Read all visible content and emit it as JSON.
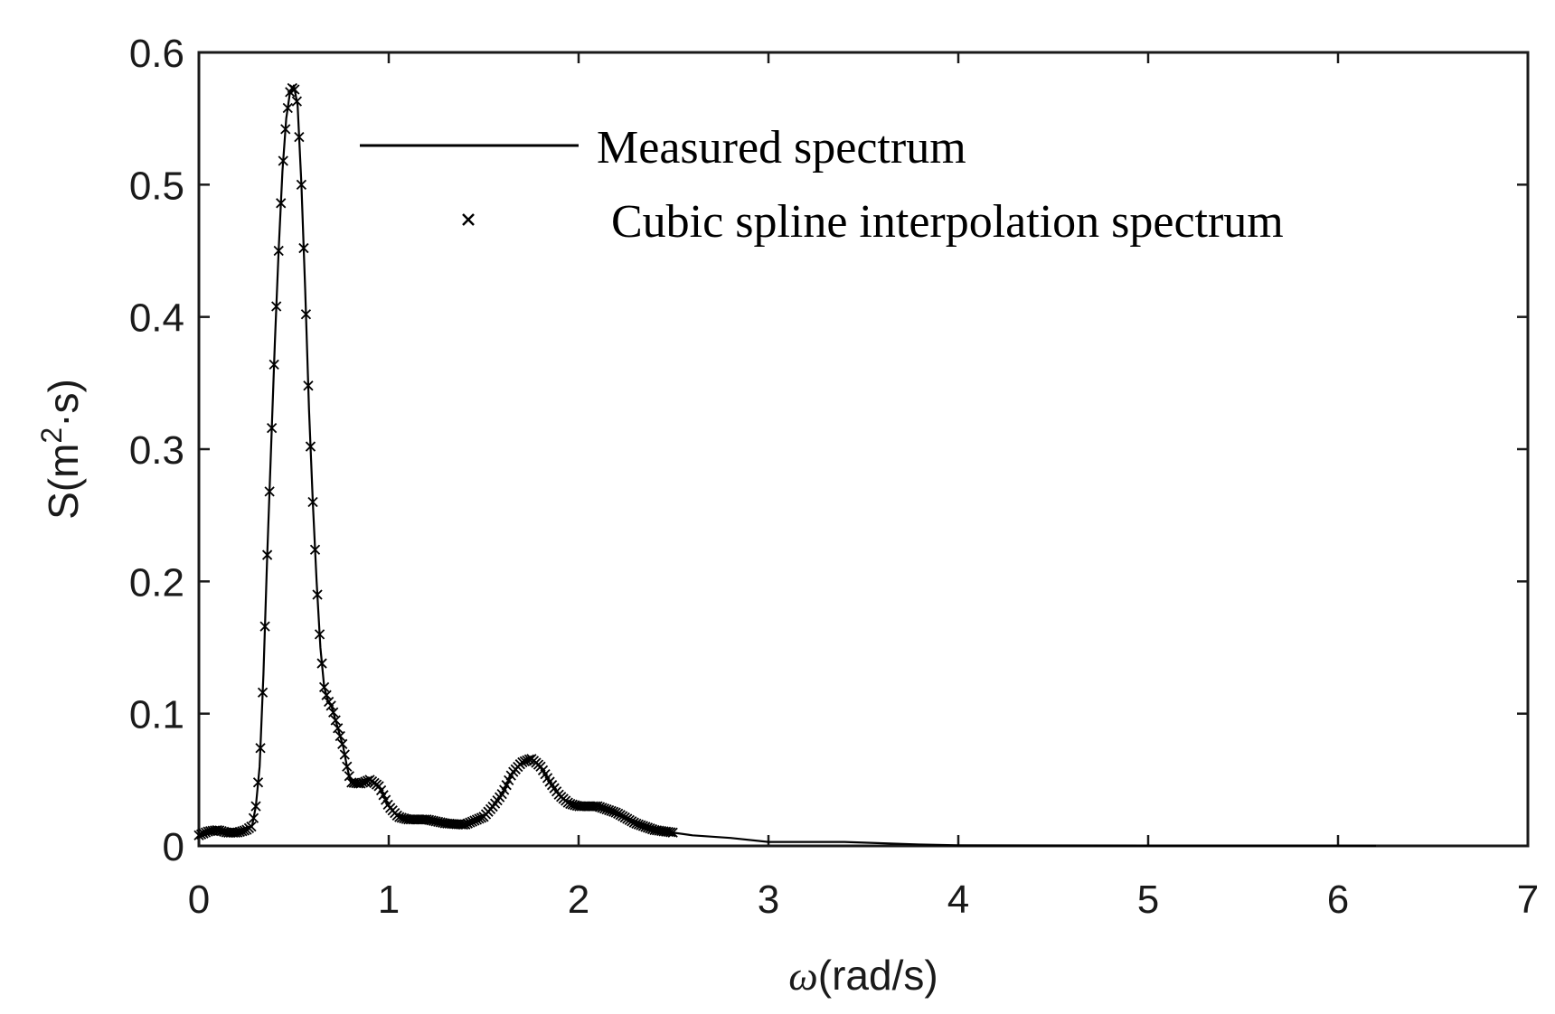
{
  "chart_data": {
    "type": "line",
    "title": "",
    "xlabel": "ω(rad/s)",
    "ylabel": "S(m²·s)",
    "xlabel_symbol": "ω",
    "xlabel_unit": "(rad/s)",
    "ylabel_prefix": "S(m",
    "ylabel_sup": "2",
    "ylabel_suffix": "·s)",
    "xlim": [
      0,
      7
    ],
    "ylim": [
      0,
      0.6
    ],
    "xticks": [
      0,
      1,
      2,
      3,
      4,
      5,
      6,
      7
    ],
    "xtick_labels": [
      "0",
      "1",
      "2",
      "3",
      "4",
      "5",
      "6",
      "7"
    ],
    "yticks": [
      0,
      0.1,
      0.2,
      0.3,
      0.4,
      0.5,
      0.6
    ],
    "ytick_labels": [
      "0",
      "0.1",
      "0.2",
      "0.3",
      "0.4",
      "0.5",
      "0.6"
    ],
    "grid": false,
    "legend_position": "top-right",
    "series": [
      {
        "name": "Measured spectrum",
        "style": "solid-line",
        "color": "#000000",
        "x": [
          0.0,
          0.05,
          0.1,
          0.15,
          0.2,
          0.25,
          0.28,
          0.3,
          0.32,
          0.34,
          0.36,
          0.38,
          0.4,
          0.42,
          0.44,
          0.46,
          0.48,
          0.5,
          0.52,
          0.54,
          0.56,
          0.58,
          0.6,
          0.62,
          0.64,
          0.66,
          0.68,
          0.7,
          0.72,
          0.74,
          0.76,
          0.78,
          0.8,
          0.85,
          0.9,
          0.95,
          1.0,
          1.05,
          1.1,
          1.2,
          1.3,
          1.4,
          1.5,
          1.55,
          1.6,
          1.65,
          1.7,
          1.75,
          1.8,
          1.85,
          1.9,
          1.95,
          2.0,
          2.1,
          2.2,
          2.3,
          2.4,
          2.5,
          2.6,
          2.8,
          3.0,
          3.4,
          3.8,
          4.0,
          5.0,
          6.0,
          6.2
        ],
        "y": [
          0.008,
          0.011,
          0.012,
          0.01,
          0.01,
          0.012,
          0.015,
          0.03,
          0.06,
          0.13,
          0.22,
          0.3,
          0.38,
          0.45,
          0.51,
          0.55,
          0.57,
          0.575,
          0.56,
          0.5,
          0.42,
          0.33,
          0.26,
          0.2,
          0.15,
          0.12,
          0.11,
          0.105,
          0.095,
          0.085,
          0.075,
          0.06,
          0.048,
          0.047,
          0.05,
          0.045,
          0.03,
          0.022,
          0.02,
          0.02,
          0.017,
          0.016,
          0.022,
          0.03,
          0.04,
          0.055,
          0.063,
          0.066,
          0.06,
          0.048,
          0.038,
          0.032,
          0.03,
          0.03,
          0.025,
          0.017,
          0.012,
          0.01,
          0.008,
          0.006,
          0.003,
          0.003,
          0.001,
          0.0005,
          0.0003,
          0.0002,
          0.0001
        ]
      },
      {
        "name": "Cubic spline interpolation spectrum",
        "style": "x-markers",
        "color": "#000000",
        "x_range": [
          0.0,
          2.5
        ],
        "marker_spacing": 0.012
      }
    ]
  }
}
